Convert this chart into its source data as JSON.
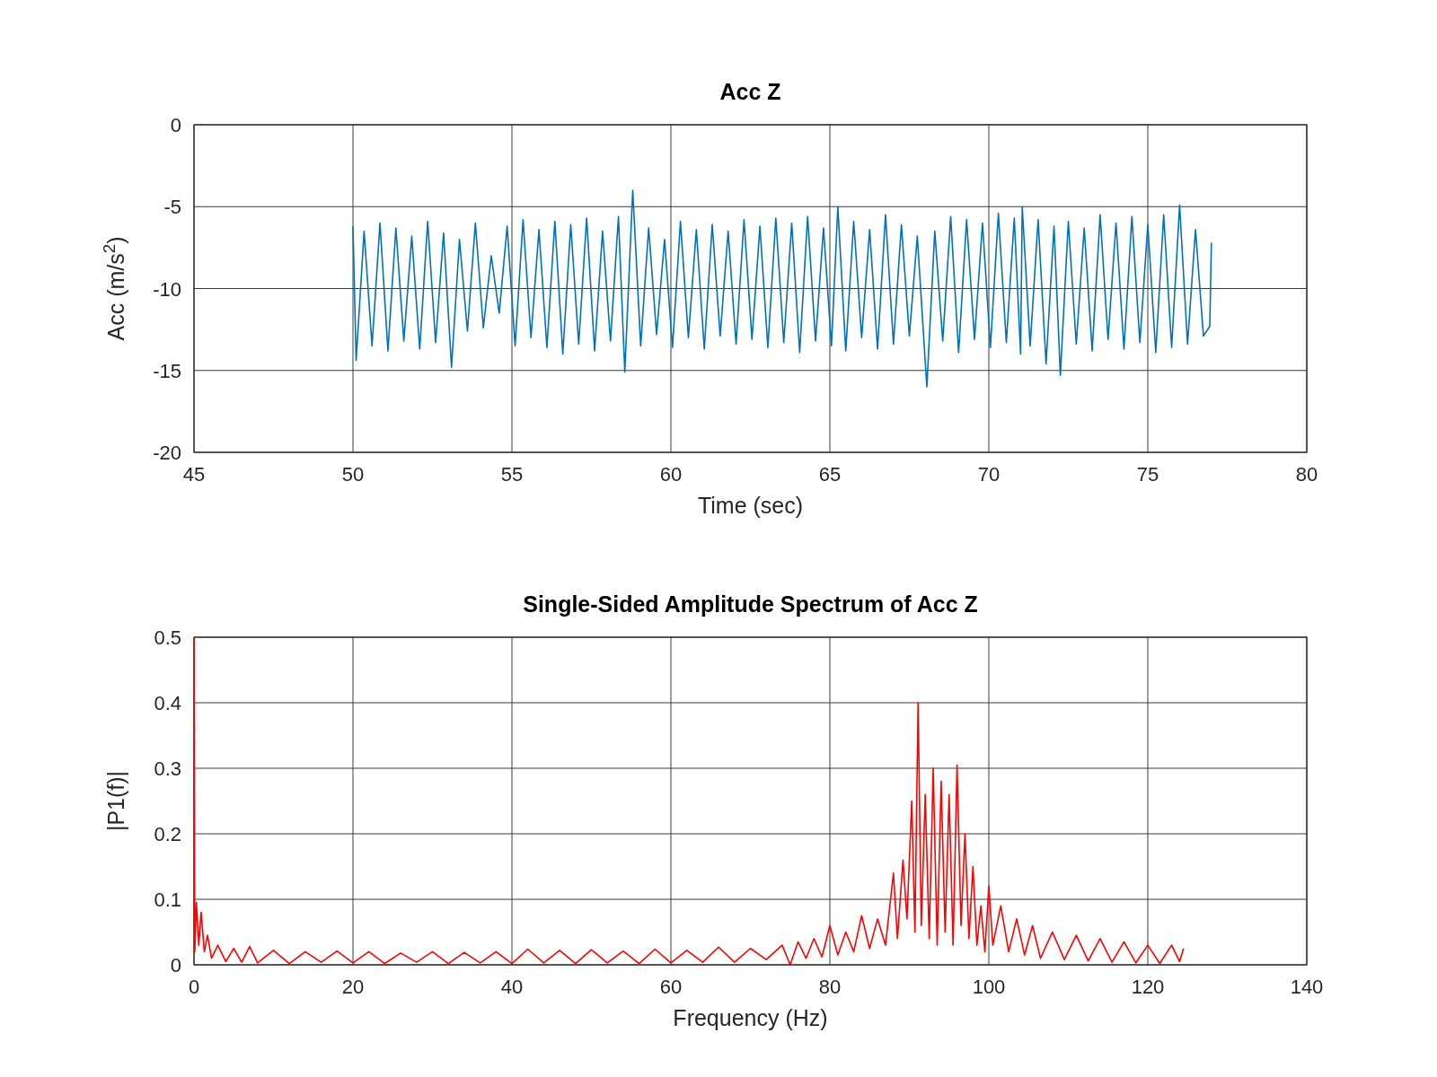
{
  "chart_data": [
    {
      "type": "line",
      "title": "Acc Z",
      "xlabel": "Time (sec)",
      "ylabel": "Acc (m/s$^{2}$)",
      "xlim": [
        45,
        80
      ],
      "xticks": [
        45,
        50,
        55,
        60,
        65,
        70,
        75,
        80
      ],
      "ylim": [
        -20,
        0
      ],
      "yticks": [
        -20,
        -15,
        -10,
        -5,
        0
      ],
      "grid": true,
      "series": [
        {
          "color": "#0072bd",
          "x": [
            50.0,
            50.1,
            50.35,
            50.6,
            50.85,
            51.1,
            51.35,
            51.6,
            51.85,
            52.1,
            52.35,
            52.6,
            52.85,
            53.1,
            53.35,
            53.6,
            53.85,
            54.1,
            54.35,
            54.6,
            54.85,
            55.1,
            55.35,
            55.6,
            55.85,
            56.1,
            56.35,
            56.6,
            56.85,
            57.1,
            57.35,
            57.6,
            57.85,
            58.1,
            58.35,
            58.55,
            58.8,
            59.05,
            59.3,
            59.55,
            59.8,
            60.05,
            60.3,
            60.55,
            60.8,
            61.05,
            61.3,
            61.55,
            61.8,
            62.05,
            62.3,
            62.55,
            62.8,
            63.05,
            63.3,
            63.55,
            63.8,
            64.05,
            64.3,
            64.55,
            64.8,
            65.05,
            65.25,
            65.5,
            65.75,
            66.0,
            66.25,
            66.5,
            66.75,
            67.0,
            67.25,
            67.5,
            67.75,
            68.05,
            68.3,
            68.55,
            68.8,
            69.05,
            69.3,
            69.55,
            69.8,
            70.05,
            70.3,
            70.55,
            70.8,
            71.0,
            71.05,
            71.3,
            71.55,
            71.8,
            72.05,
            72.25,
            72.5,
            72.75,
            73.0,
            73.25,
            73.5,
            73.75,
            74.0,
            74.25,
            74.5,
            74.75,
            75.0,
            75.25,
            75.5,
            75.75,
            76.0,
            76.25,
            76.5,
            76.75,
            76.95,
            77.0
          ],
          "values": [
            -6.2,
            -14.4,
            -6.5,
            -13.5,
            -6.0,
            -13.8,
            -6.3,
            -13.2,
            -6.8,
            -13.7,
            -5.9,
            -13.3,
            -6.6,
            -14.8,
            -7.0,
            -12.6,
            -6.0,
            -12.4,
            -8.0,
            -11.5,
            -6.2,
            -13.5,
            -5.8,
            -13.0,
            -6.4,
            -13.6,
            -5.9,
            -14.0,
            -6.1,
            -13.4,
            -5.7,
            -13.8,
            -6.5,
            -13.2,
            -5.6,
            -15.1,
            -4.0,
            -13.5,
            -6.3,
            -12.8,
            -7.0,
            -13.6,
            -5.9,
            -13.0,
            -6.4,
            -13.7,
            -6.1,
            -12.9,
            -6.5,
            -13.4,
            -5.8,
            -13.1,
            -6.2,
            -13.6,
            -5.7,
            -13.3,
            -6.0,
            -13.9,
            -5.6,
            -13.2,
            -6.3,
            -13.5,
            -5.0,
            -13.8,
            -5.9,
            -13.0,
            -6.4,
            -13.7,
            -5.5,
            -13.4,
            -6.1,
            -12.9,
            -6.8,
            -16.0,
            -6.5,
            -13.2,
            -5.6,
            -13.9,
            -5.8,
            -13.1,
            -6.0,
            -13.6,
            -5.4,
            -13.3,
            -5.7,
            -14.0,
            -5.0,
            -13.5,
            -5.8,
            -14.6,
            -6.2,
            -15.3,
            -5.9,
            -13.4,
            -6.3,
            -13.8,
            -5.5,
            -13.1,
            -6.0,
            -13.7,
            -5.6,
            -13.3,
            -6.1,
            -13.9,
            -5.5,
            -13.6,
            -4.9,
            -13.4,
            -6.4,
            -12.9,
            -12.3,
            -7.2
          ]
        }
      ]
    },
    {
      "type": "line",
      "title": "Single-Sided Amplitude Spectrum of Acc Z",
      "xlabel": "Frequency (Hz)",
      "ylabel": "|P1(f)|",
      "xlim": [
        0,
        140
      ],
      "xticks": [
        0,
        20,
        40,
        60,
        80,
        100,
        120,
        140
      ],
      "ylim": [
        0,
        0.5
      ],
      "yticks": [
        0,
        0.1,
        0.2,
        0.3,
        0.4,
        0.5
      ],
      "grid": true,
      "series": [
        {
          "color": "#ff0000",
          "x": [
            0,
            0.1,
            0.3,
            0.6,
            0.9,
            1.3,
            1.7,
            2.2,
            3,
            4,
            5,
            6,
            7,
            8,
            10,
            12,
            14,
            16,
            18,
            20,
            22,
            24,
            26,
            28,
            30,
            32,
            34,
            36,
            38,
            40,
            42,
            44,
            46,
            48,
            50,
            52,
            54,
            56,
            58,
            60,
            62,
            64,
            66,
            68,
            70,
            72,
            74,
            75,
            76,
            77,
            78,
            79,
            80,
            81,
            82,
            83,
            84,
            85,
            86,
            87,
            88,
            88.5,
            89.2,
            89.7,
            90.3,
            90.7,
            91.1,
            91.5,
            92,
            92.5,
            93,
            93.5,
            94,
            94.5,
            95,
            95.5,
            96,
            96.5,
            97,
            97.5,
            98,
            98.5,
            99,
            99.5,
            100,
            100.5,
            101.5,
            102.5,
            103.5,
            104.5,
            105.5,
            106.5,
            108,
            109.5,
            111,
            112.5,
            114,
            115.5,
            117,
            118.5,
            120,
            121.5,
            123,
            124,
            124.5
          ],
          "values": [
            0.5,
            0.02,
            0.095,
            0.03,
            0.08,
            0.02,
            0.045,
            0.01,
            0.03,
            0.005,
            0.025,
            0.004,
            0.028,
            0.003,
            0.022,
            0.002,
            0.02,
            0.004,
            0.021,
            0.003,
            0.02,
            0.002,
            0.018,
            0.004,
            0.02,
            0.002,
            0.019,
            0.003,
            0.02,
            0.002,
            0.024,
            0.003,
            0.022,
            0.002,
            0.023,
            0.003,
            0.021,
            0.002,
            0.024,
            0.003,
            0.022,
            0.004,
            0.027,
            0.004,
            0.025,
            0.008,
            0.03,
            0.0,
            0.035,
            0.01,
            0.04,
            0.012,
            0.06,
            0.015,
            0.05,
            0.02,
            0.075,
            0.025,
            0.07,
            0.03,
            0.14,
            0.04,
            0.16,
            0.07,
            0.25,
            0.05,
            0.4,
            0.06,
            0.26,
            0.04,
            0.3,
            0.03,
            0.28,
            0.05,
            0.26,
            0.03,
            0.305,
            0.06,
            0.2,
            0.04,
            0.15,
            0.03,
            0.09,
            0.02,
            0.12,
            0.03,
            0.09,
            0.02,
            0.07,
            0.015,
            0.06,
            0.01,
            0.05,
            0.008,
            0.045,
            0.006,
            0.04,
            0.004,
            0.035,
            0.003,
            0.03,
            0.002,
            0.03,
            0.005,
            0.025
          ]
        }
      ]
    }
  ]
}
